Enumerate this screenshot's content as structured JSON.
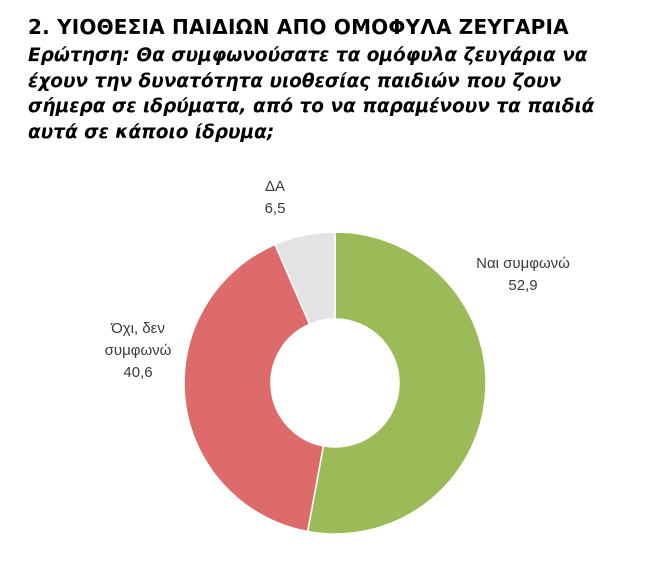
{
  "header": {
    "title": "2. ΥΙΟΘΕΣΙΑ ΠΑΙΔΙΩΝ ΑΠΟ ΟΜΟΦΥΛΑ ΖΕΥΓΑΡΙΑ",
    "question": "Ερώτηση: Θα συμφωνούσατε τα ομόφυλα ζευγάρια να έχουν την δυνατότητα υιοθεσίας παιδιών που ζουν σήμερα σε ιδρύματα, από το να παραμένουν τα παιδιά αυτά σε κάποιο ίδρυμα;"
  },
  "chart_data": {
    "type": "pie",
    "donut": true,
    "slices": [
      {
        "label": "Ναι συμφωνώ",
        "value": 52.9,
        "value_text": "52,9",
        "color": "#9bbb59"
      },
      {
        "label": "Όχι, δεν συμφωνώ",
        "value": 40.6,
        "value_text": "40,6",
        "color": "#dd6b6b"
      },
      {
        "label": "ΔΑ",
        "value": 6.5,
        "value_text": "6,5",
        "color": "#e3e3e3"
      }
    ],
    "legend": "none",
    "start_angle": "12 o'clock",
    "direction": "clockwise"
  }
}
